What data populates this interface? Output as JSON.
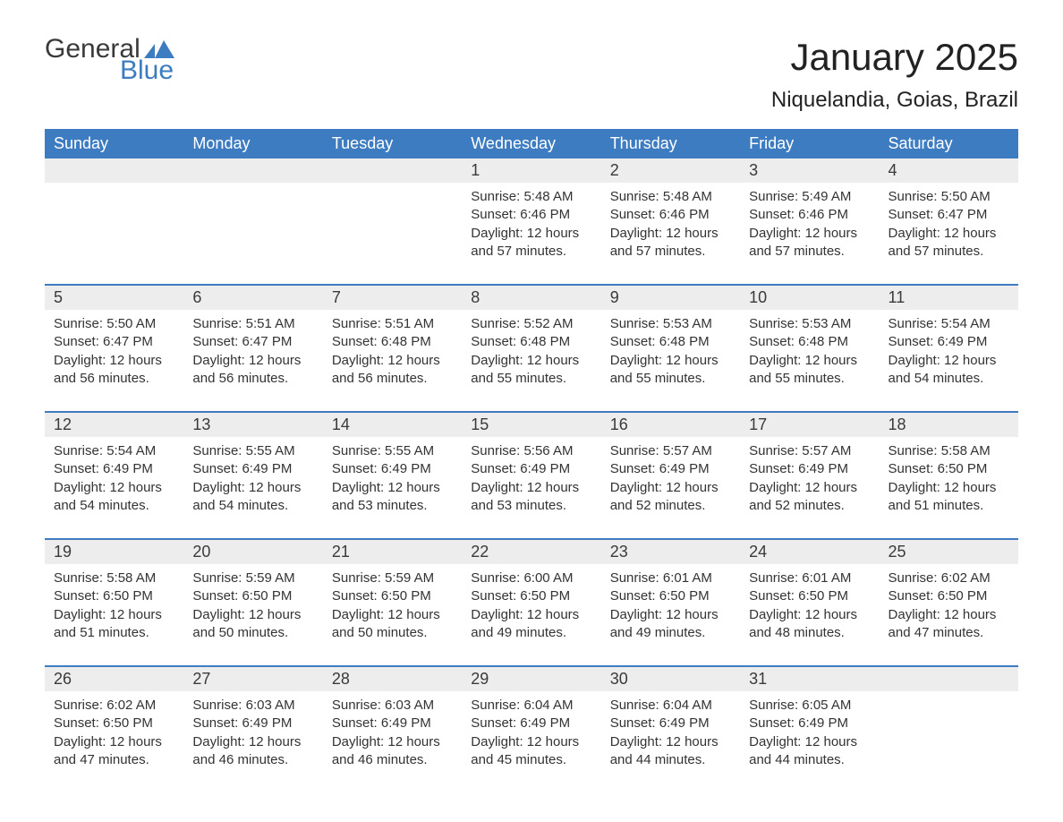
{
  "logo": {
    "text_general": "General",
    "text_blue": "Blue",
    "accent_color": "#3d7cc0",
    "text_color": "#3a3a3a"
  },
  "header": {
    "month_title": "January 2025",
    "location": "Niquelandia, Goias, Brazil"
  },
  "colors": {
    "header_bg": "#3d7cc0",
    "header_text": "#ffffff",
    "row_separator": "#3d7cc0",
    "daynum_bg": "#ededed",
    "body_text": "#333333",
    "page_bg": "#ffffff"
  },
  "typography": {
    "title_fontsize": 42,
    "location_fontsize": 24,
    "dow_fontsize": 18,
    "daynum_fontsize": 18,
    "details_fontsize": 15,
    "font_family": "Arial"
  },
  "calendar": {
    "days_of_week": [
      "Sunday",
      "Monday",
      "Tuesday",
      "Wednesday",
      "Thursday",
      "Friday",
      "Saturday"
    ],
    "weeks": [
      [
        null,
        null,
        null,
        {
          "day": "1",
          "sunrise": "Sunrise: 5:48 AM",
          "sunset": "Sunset: 6:46 PM",
          "dl1": "Daylight: 12 hours",
          "dl2": "and 57 minutes."
        },
        {
          "day": "2",
          "sunrise": "Sunrise: 5:48 AM",
          "sunset": "Sunset: 6:46 PM",
          "dl1": "Daylight: 12 hours",
          "dl2": "and 57 minutes."
        },
        {
          "day": "3",
          "sunrise": "Sunrise: 5:49 AM",
          "sunset": "Sunset: 6:46 PM",
          "dl1": "Daylight: 12 hours",
          "dl2": "and 57 minutes."
        },
        {
          "day": "4",
          "sunrise": "Sunrise: 5:50 AM",
          "sunset": "Sunset: 6:47 PM",
          "dl1": "Daylight: 12 hours",
          "dl2": "and 57 minutes."
        }
      ],
      [
        {
          "day": "5",
          "sunrise": "Sunrise: 5:50 AM",
          "sunset": "Sunset: 6:47 PM",
          "dl1": "Daylight: 12 hours",
          "dl2": "and 56 minutes."
        },
        {
          "day": "6",
          "sunrise": "Sunrise: 5:51 AM",
          "sunset": "Sunset: 6:47 PM",
          "dl1": "Daylight: 12 hours",
          "dl2": "and 56 minutes."
        },
        {
          "day": "7",
          "sunrise": "Sunrise: 5:51 AM",
          "sunset": "Sunset: 6:48 PM",
          "dl1": "Daylight: 12 hours",
          "dl2": "and 56 minutes."
        },
        {
          "day": "8",
          "sunrise": "Sunrise: 5:52 AM",
          "sunset": "Sunset: 6:48 PM",
          "dl1": "Daylight: 12 hours",
          "dl2": "and 55 minutes."
        },
        {
          "day": "9",
          "sunrise": "Sunrise: 5:53 AM",
          "sunset": "Sunset: 6:48 PM",
          "dl1": "Daylight: 12 hours",
          "dl2": "and 55 minutes."
        },
        {
          "day": "10",
          "sunrise": "Sunrise: 5:53 AM",
          "sunset": "Sunset: 6:48 PM",
          "dl1": "Daylight: 12 hours",
          "dl2": "and 55 minutes."
        },
        {
          "day": "11",
          "sunrise": "Sunrise: 5:54 AM",
          "sunset": "Sunset: 6:49 PM",
          "dl1": "Daylight: 12 hours",
          "dl2": "and 54 minutes."
        }
      ],
      [
        {
          "day": "12",
          "sunrise": "Sunrise: 5:54 AM",
          "sunset": "Sunset: 6:49 PM",
          "dl1": "Daylight: 12 hours",
          "dl2": "and 54 minutes."
        },
        {
          "day": "13",
          "sunrise": "Sunrise: 5:55 AM",
          "sunset": "Sunset: 6:49 PM",
          "dl1": "Daylight: 12 hours",
          "dl2": "and 54 minutes."
        },
        {
          "day": "14",
          "sunrise": "Sunrise: 5:55 AM",
          "sunset": "Sunset: 6:49 PM",
          "dl1": "Daylight: 12 hours",
          "dl2": "and 53 minutes."
        },
        {
          "day": "15",
          "sunrise": "Sunrise: 5:56 AM",
          "sunset": "Sunset: 6:49 PM",
          "dl1": "Daylight: 12 hours",
          "dl2": "and 53 minutes."
        },
        {
          "day": "16",
          "sunrise": "Sunrise: 5:57 AM",
          "sunset": "Sunset: 6:49 PM",
          "dl1": "Daylight: 12 hours",
          "dl2": "and 52 minutes."
        },
        {
          "day": "17",
          "sunrise": "Sunrise: 5:57 AM",
          "sunset": "Sunset: 6:49 PM",
          "dl1": "Daylight: 12 hours",
          "dl2": "and 52 minutes."
        },
        {
          "day": "18",
          "sunrise": "Sunrise: 5:58 AM",
          "sunset": "Sunset: 6:50 PM",
          "dl1": "Daylight: 12 hours",
          "dl2": "and 51 minutes."
        }
      ],
      [
        {
          "day": "19",
          "sunrise": "Sunrise: 5:58 AM",
          "sunset": "Sunset: 6:50 PM",
          "dl1": "Daylight: 12 hours",
          "dl2": "and 51 minutes."
        },
        {
          "day": "20",
          "sunrise": "Sunrise: 5:59 AM",
          "sunset": "Sunset: 6:50 PM",
          "dl1": "Daylight: 12 hours",
          "dl2": "and 50 minutes."
        },
        {
          "day": "21",
          "sunrise": "Sunrise: 5:59 AM",
          "sunset": "Sunset: 6:50 PM",
          "dl1": "Daylight: 12 hours",
          "dl2": "and 50 minutes."
        },
        {
          "day": "22",
          "sunrise": "Sunrise: 6:00 AM",
          "sunset": "Sunset: 6:50 PM",
          "dl1": "Daylight: 12 hours",
          "dl2": "and 49 minutes."
        },
        {
          "day": "23",
          "sunrise": "Sunrise: 6:01 AM",
          "sunset": "Sunset: 6:50 PM",
          "dl1": "Daylight: 12 hours",
          "dl2": "and 49 minutes."
        },
        {
          "day": "24",
          "sunrise": "Sunrise: 6:01 AM",
          "sunset": "Sunset: 6:50 PM",
          "dl1": "Daylight: 12 hours",
          "dl2": "and 48 minutes."
        },
        {
          "day": "25",
          "sunrise": "Sunrise: 6:02 AM",
          "sunset": "Sunset: 6:50 PM",
          "dl1": "Daylight: 12 hours",
          "dl2": "and 47 minutes."
        }
      ],
      [
        {
          "day": "26",
          "sunrise": "Sunrise: 6:02 AM",
          "sunset": "Sunset: 6:50 PM",
          "dl1": "Daylight: 12 hours",
          "dl2": "and 47 minutes."
        },
        {
          "day": "27",
          "sunrise": "Sunrise: 6:03 AM",
          "sunset": "Sunset: 6:49 PM",
          "dl1": "Daylight: 12 hours",
          "dl2": "and 46 minutes."
        },
        {
          "day": "28",
          "sunrise": "Sunrise: 6:03 AM",
          "sunset": "Sunset: 6:49 PM",
          "dl1": "Daylight: 12 hours",
          "dl2": "and 46 minutes."
        },
        {
          "day": "29",
          "sunrise": "Sunrise: 6:04 AM",
          "sunset": "Sunset: 6:49 PM",
          "dl1": "Daylight: 12 hours",
          "dl2": "and 45 minutes."
        },
        {
          "day": "30",
          "sunrise": "Sunrise: 6:04 AM",
          "sunset": "Sunset: 6:49 PM",
          "dl1": "Daylight: 12 hours",
          "dl2": "and 44 minutes."
        },
        {
          "day": "31",
          "sunrise": "Sunrise: 6:05 AM",
          "sunset": "Sunset: 6:49 PM",
          "dl1": "Daylight: 12 hours",
          "dl2": "and 44 minutes."
        },
        null
      ]
    ]
  }
}
